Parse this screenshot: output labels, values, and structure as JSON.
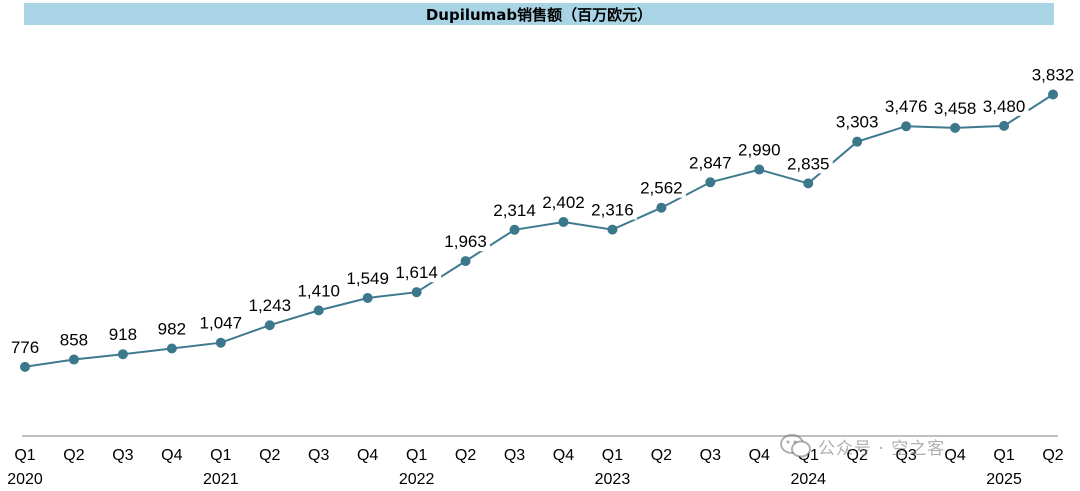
{
  "chart_data": {
    "type": "line",
    "title": "Dupilumab销售额（百万欧元）",
    "quarters": [
      "Q1",
      "Q2",
      "Q3",
      "Q4",
      "Q1",
      "Q2",
      "Q3",
      "Q4",
      "Q1",
      "Q2",
      "Q3",
      "Q4",
      "Q1",
      "Q2",
      "Q3",
      "Q4",
      "Q1",
      "Q2",
      "Q3",
      "Q4",
      "Q1",
      "Q2"
    ],
    "years": [
      {
        "label": "2020",
        "index": 0
      },
      {
        "label": "2021",
        "index": 4
      },
      {
        "label": "2022",
        "index": 8
      },
      {
        "label": "2023",
        "index": 12
      },
      {
        "label": "2024",
        "index": 16
      },
      {
        "label": "2025",
        "index": 20
      }
    ],
    "values": [
      776,
      858,
      918,
      982,
      1047,
      1243,
      1410,
      1549,
      1614,
      1963,
      2314,
      2402,
      2316,
      2562,
      2847,
      2990,
      2835,
      3303,
      3476,
      3458,
      3480,
      3832
    ],
    "value_labels": [
      "776",
      "858",
      "918",
      "982",
      "1,047",
      "1,243",
      "1,410",
      "1,549",
      "1,614",
      "1,963",
      "2,314",
      "2,402",
      "2,316",
      "2,562",
      "2,847",
      "2,990",
      "2,835",
      "3,303",
      "3,476",
      "3,458",
      "3,480",
      "3,832"
    ],
    "ylim": [
      0,
      4500
    ],
    "grid": false,
    "legend": "none",
    "colors": {
      "line": "#3f7a8f",
      "marker": "#3b788c",
      "title_bg": "#a9d4e6"
    }
  },
  "watermark": {
    "text": "公众号 · 空之客",
    "icon": "wechat-icon"
  }
}
